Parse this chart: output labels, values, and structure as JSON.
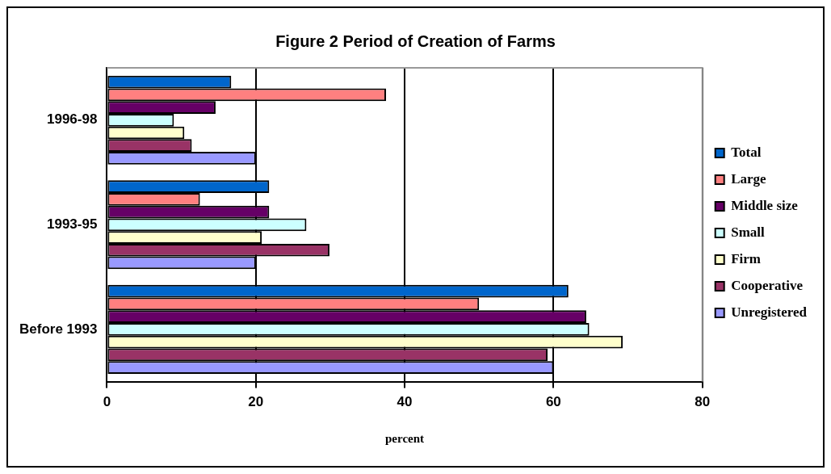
{
  "chart_data": {
    "type": "bar",
    "orientation": "horizontal",
    "title": "Figure 2 Period of Creation of Farms",
    "xlabel": "percent",
    "categories": [
      "1996-98",
      "1993-95",
      "Before 1993"
    ],
    "series": [
      {
        "name": "Total",
        "color": "#0066cc",
        "values": [
          16.7,
          21.8,
          62
        ]
      },
      {
        "name": "Large",
        "color": "#ff8080",
        "values": [
          37.5,
          12.5,
          50
        ]
      },
      {
        "name": "Middle size",
        "color": "#660066",
        "values": [
          14.6,
          21.8,
          64.4
        ]
      },
      {
        "name": "Small",
        "color": "#ccffff",
        "values": [
          9,
          26.8,
          64.8
        ]
      },
      {
        "name": "Firm",
        "color": "#ffffcc",
        "values": [
          10.4,
          20.8,
          69.3
        ]
      },
      {
        "name": "Cooperative",
        "color": "#993366",
        "values": [
          11.4,
          29.9,
          59.2
        ]
      },
      {
        "name": "Unregistered",
        "color": "#9999ff",
        "values": [
          20,
          20,
          60
        ]
      }
    ],
    "xlim": [
      0,
      80
    ],
    "xticks": [
      0,
      20,
      40,
      60,
      80
    ],
    "grid": "x",
    "legend": "right"
  }
}
